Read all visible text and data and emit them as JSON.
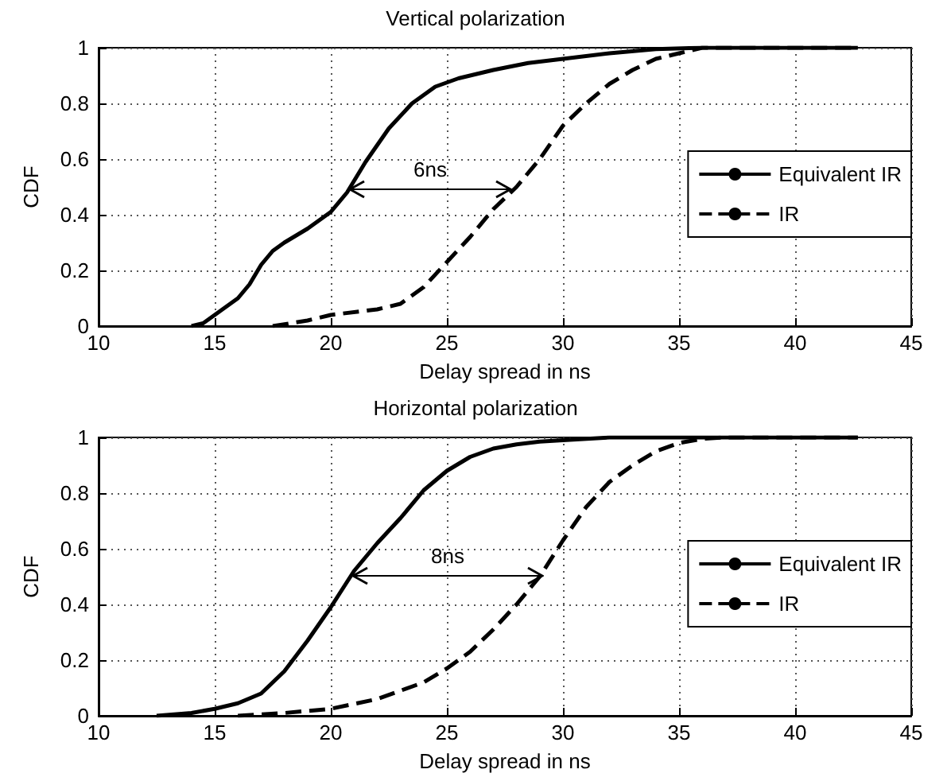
{
  "chart_data": [
    {
      "type": "line",
      "title": "Vertical polarization",
      "xlabel": "Delay spread in ns",
      "ylabel": "CDF",
      "xlim": [
        10,
        45
      ],
      "ylim": [
        0,
        1
      ],
      "xticks": [
        10,
        15,
        20,
        25,
        30,
        35,
        40,
        45
      ],
      "yticks": [
        0,
        0.2,
        0.4,
        0.6,
        0.8,
        1
      ],
      "grid": true,
      "legend": "right",
      "annotations": [
        "6ns"
      ],
      "series": [
        {
          "name": "Equivalent IR",
          "color": "#000000",
          "line_style": "solid",
          "x": [
            14,
            14.5,
            15,
            16,
            16.5,
            17,
            17.5,
            18,
            19,
            20,
            20.7,
            21.5,
            22.5,
            23.5,
            24.5,
            25.5,
            27,
            28.5,
            30,
            32,
            34,
            36,
            42.7
          ],
          "values": [
            0,
            0.01,
            0.04,
            0.1,
            0.15,
            0.22,
            0.27,
            0.3,
            0.35,
            0.41,
            0.48,
            0.59,
            0.71,
            0.8,
            0.86,
            0.89,
            0.92,
            0.945,
            0.96,
            0.98,
            0.995,
            1,
            1
          ]
        },
        {
          "name": "IR",
          "color": "#000000",
          "line_style": "dashed",
          "x": [
            17.5,
            19,
            20,
            22,
            23,
            24,
            25,
            26,
            27,
            28,
            29,
            30,
            31,
            32,
            33,
            34,
            35,
            36,
            42.7
          ],
          "values": [
            0,
            0.02,
            0.04,
            0.06,
            0.08,
            0.14,
            0.23,
            0.32,
            0.42,
            0.5,
            0.6,
            0.72,
            0.8,
            0.87,
            0.92,
            0.96,
            0.98,
            1,
            1
          ]
        }
      ]
    },
    {
      "type": "line",
      "title": "Horizontal polarization",
      "xlabel": "Delay spread in ns",
      "ylabel": "CDF",
      "xlim": [
        10,
        45
      ],
      "ylim": [
        0,
        1
      ],
      "xticks": [
        10,
        15,
        20,
        25,
        30,
        35,
        40,
        45
      ],
      "yticks": [
        0,
        0.2,
        0.4,
        0.6,
        0.8,
        1
      ],
      "grid": true,
      "legend": "right",
      "annotations": [
        "8ns"
      ],
      "series": [
        {
          "name": "Equivalent IR",
          "color": "#000000",
          "line_style": "solid",
          "x": [
            12.5,
            14,
            15,
            16,
            17,
            18,
            19,
            20,
            21,
            22,
            23,
            24,
            25,
            26,
            27,
            28,
            29,
            30,
            32,
            42.7
          ],
          "values": [
            0,
            0.01,
            0.025,
            0.045,
            0.08,
            0.16,
            0.27,
            0.39,
            0.52,
            0.62,
            0.71,
            0.81,
            0.88,
            0.93,
            0.96,
            0.975,
            0.985,
            0.99,
            1,
            1
          ]
        },
        {
          "name": "IR",
          "color": "#000000",
          "line_style": "dashed",
          "x": [
            16,
            18,
            20,
            22,
            23,
            24,
            25,
            26,
            27,
            28,
            29,
            30,
            31,
            32,
            33,
            34,
            35,
            36,
            37,
            42.7
          ],
          "values": [
            0,
            0.01,
            0.025,
            0.06,
            0.09,
            0.12,
            0.17,
            0.23,
            0.31,
            0.4,
            0.5,
            0.63,
            0.75,
            0.84,
            0.9,
            0.95,
            0.98,
            0.995,
            1,
            1
          ]
        }
      ]
    }
  ]
}
